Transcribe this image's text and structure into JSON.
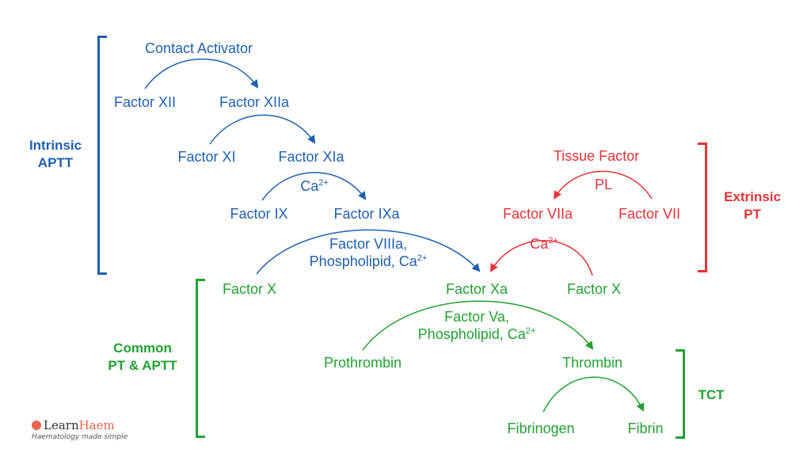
{
  "colors": {
    "intrinsic": "#1f5fb0",
    "extrinsic": "#e53238",
    "common": "#22a131",
    "logo_accent": "#e8654f"
  },
  "intrinsic": {
    "label_line1": "Intrinsic",
    "label_line2": "APTT",
    "contact_activator": "Contact Activator",
    "factor_xii": "Factor XII",
    "factor_xiia": "Factor XIIa",
    "factor_xi": "Factor XI",
    "factor_xia": "Factor XIa",
    "ca_base": "Ca",
    "ca_sup": "2+",
    "factor_ix": "Factor IX",
    "factor_ixa": "Factor IXa",
    "cofactor_line1": "Factor VIIIa,",
    "cofactor_line2_base": "Phospholipid, Ca",
    "cofactor_line2_sup": "2+"
  },
  "extrinsic": {
    "label_line1": "Extrinsic",
    "label_line2": "PT",
    "tissue_factor": "Tissue Factor",
    "pl": "PL",
    "factor_viia": "Factor VIIa",
    "factor_vii": "Factor VII",
    "ca_base": "Ca",
    "ca_sup": "2+"
  },
  "common": {
    "label_line1": "Common",
    "label_line2": "PT & APTT",
    "factor_x_left": "Factor X",
    "factor_xa": "Factor Xa",
    "factor_x_right": "Factor X",
    "cofactor_line1": "Factor Va,",
    "cofactor_line2_base": "Phospholipid, Ca",
    "cofactor_line2_sup": "2+",
    "prothrombin": "Prothrombin",
    "thrombin": "Thrombin",
    "fibrinogen": "Fibrinogen",
    "fibrin": "Fibrin"
  },
  "tct": {
    "label": "TCT"
  },
  "logo": {
    "name_part1": "Learn",
    "name_part2": "Haem",
    "tagline": "Haematology made simple"
  }
}
